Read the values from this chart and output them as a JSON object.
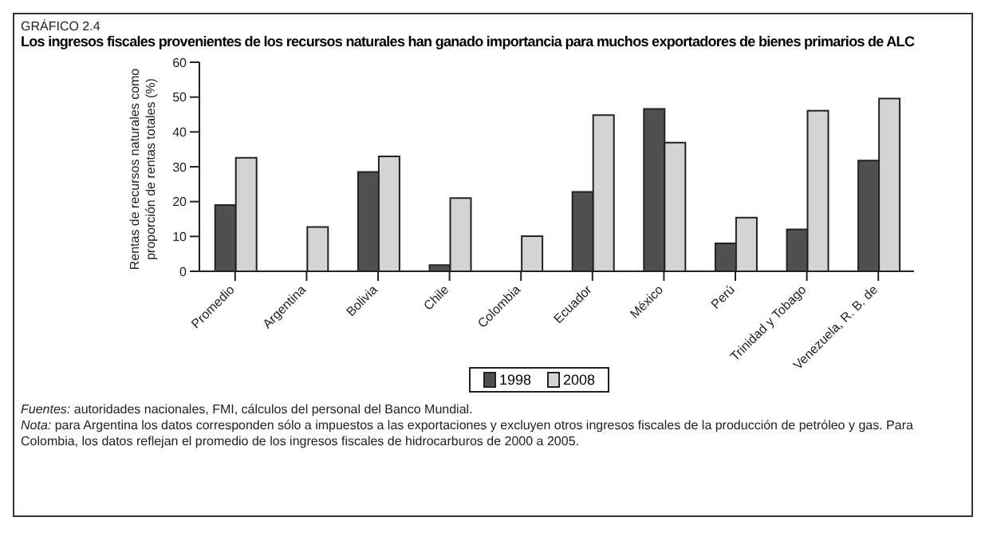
{
  "chart_data": {
    "type": "bar",
    "subtitle": "GRÁFICO 2.4",
    "title": "Los ingresos fiscales provenientes de los recursos naturales han ganado importancia para muchos exportadores de bienes primarios de ALC",
    "ylabel": "Rentas de recursos naturales como proporción de rentas totales (%)",
    "categories": [
      "Promedio",
      "Argentina",
      "Bolivia",
      "Chile",
      "Colombia",
      "Ecuador",
      "México",
      "Perú",
      "Trinidad y Tobago",
      "Venezuela, R. B. de"
    ],
    "series": [
      {
        "name": "1998",
        "color": "#505050",
        "values": [
          19,
          null,
          28.5,
          1.8,
          null,
          22.8,
          46.6,
          8,
          12,
          31.8
        ]
      },
      {
        "name": "2008",
        "color": "#d4d4d4",
        "values": [
          32.6,
          12.7,
          33,
          21,
          10.1,
          44.8,
          36.9,
          15.4,
          46.1,
          49.6
        ]
      }
    ],
    "ylim": [
      0,
      60
    ],
    "yticks": [
      0,
      10,
      20,
      30,
      40,
      50,
      60
    ],
    "grid": false,
    "legend": "bottom",
    "annotations": [
      "Fuentes: autoridades nacionales, FMI, cálculos del personal del Banco Mundial.",
      "Nota: para Argentina los datos corresponden sólo a impuestos a las exportaciones y excluyen otros ingresos fiscales de la producción de petróleo y gas. Para Colombia, los datos reflejan el promedio de los ingresos fiscales de hidrocarburos de 2000 a 2005."
    ]
  }
}
